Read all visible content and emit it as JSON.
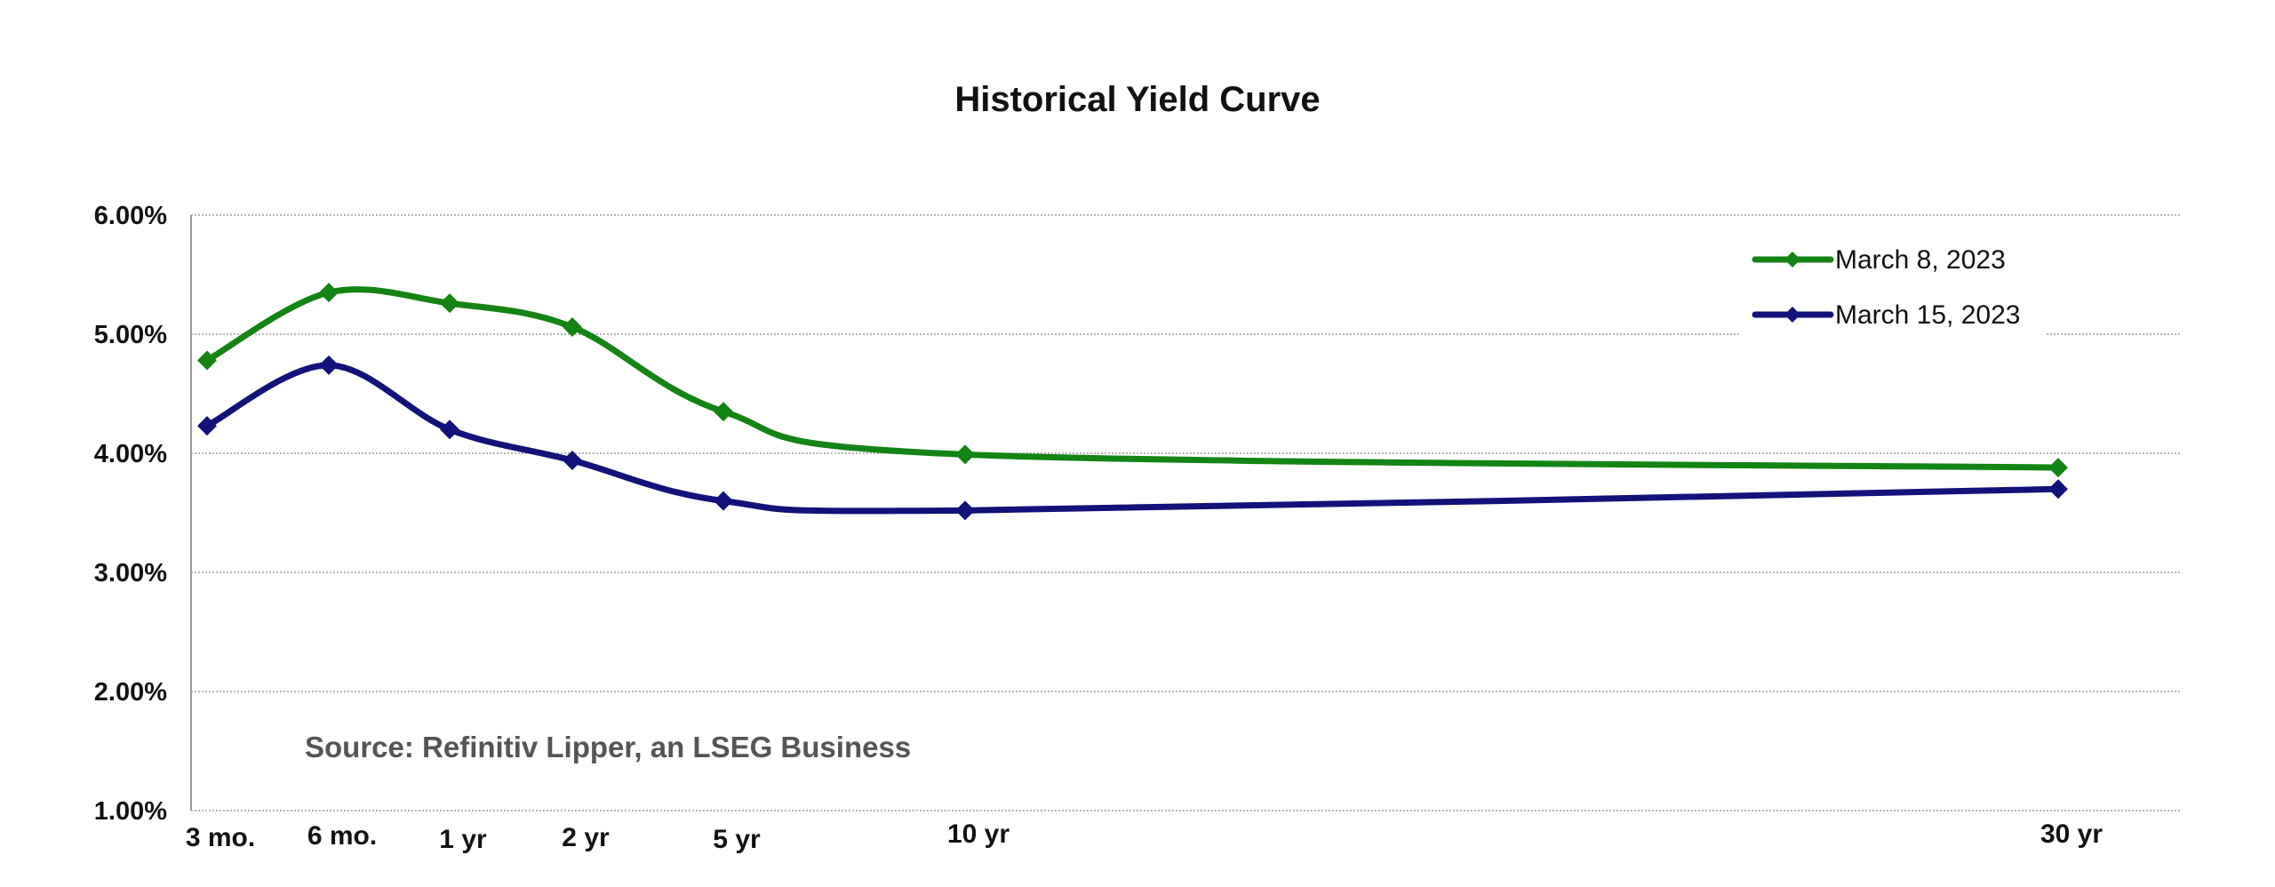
{
  "chart_data": {
    "type": "line",
    "title": "Historical Yield Curve",
    "xlabel": "",
    "ylabel": "",
    "categories": [
      "3 mo.",
      "6 mo.",
      "1 yr",
      "2 yr",
      "5 yr",
      "10 yr",
      "30 yr"
    ],
    "y_tick_labels": [
      "1.00%",
      "2.00%",
      "3.00%",
      "4.00%",
      "5.00%",
      "6.00%"
    ],
    "ylim": [
      1,
      6
    ],
    "y_unit": "%",
    "grid": true,
    "legend_position": "top-right",
    "series": [
      {
        "name": "March 8, 2023",
        "color": "#148414",
        "values": [
          4.78,
          5.35,
          5.26,
          5.06,
          4.35,
          3.99,
          3.88
        ]
      },
      {
        "name": "March 15, 2023",
        "color": "#12127a",
        "values": [
          4.23,
          4.74,
          4.2,
          3.94,
          3.6,
          3.52,
          3.7
        ]
      }
    ],
    "annotation": "Source: Refinitiv Lipper, an LSEG Business"
  }
}
